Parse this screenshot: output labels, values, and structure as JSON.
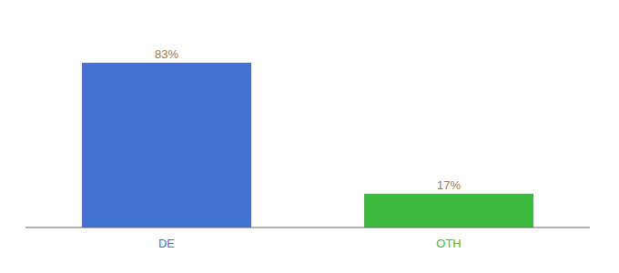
{
  "chart_data": {
    "type": "bar",
    "categories": [
      "DE",
      "OTH"
    ],
    "values": [
      83,
      17
    ],
    "value_labels": [
      "83%",
      "17%"
    ],
    "colors": [
      "#4472D4",
      "#3DBB3D"
    ],
    "ylim": [
      0,
      100
    ],
    "data_labels": true,
    "tick_labels": "x",
    "grid": false
  }
}
